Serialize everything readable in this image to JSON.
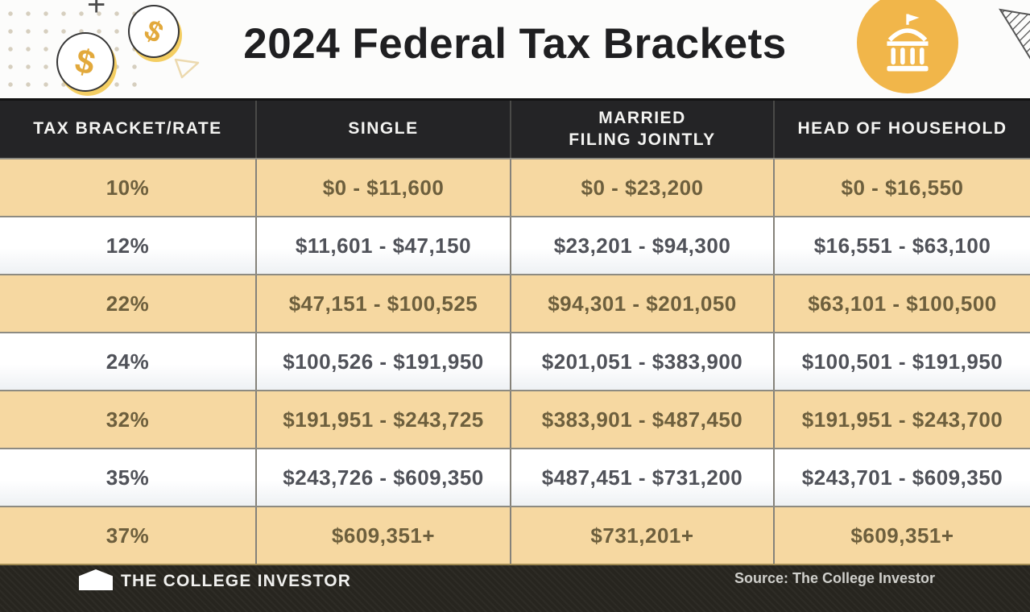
{
  "title": "2024 Federal Tax Brackets",
  "icons": {
    "dollar_glyph": "$",
    "plus_glyph": "+",
    "bank_icon": "capitol-building",
    "coin_icon": "dollar-coin",
    "triangle_outline_icon": "triangle-outline",
    "hatched_triangle_icon": "hatched-triangle",
    "pennant_icon": "pennant-flag"
  },
  "colors": {
    "accent_yellow": "#f1b64a",
    "row_tan": "#f6d8a1",
    "header_dark": "#242426",
    "tan_row_text": "#6d5f3d",
    "white_row_text": "#505259",
    "coin_gold": "#e2a93c",
    "coin_shadow_yellow": "#f4ce62",
    "footer_dark": "#27251f"
  },
  "chart_data": {
    "type": "table",
    "title": "2024 Federal Tax Brackets",
    "columns": [
      "TAX BRACKET/RATE",
      "SINGLE",
      "MARRIED\nFILING JOINTLY",
      "HEAD OF HOUSEHOLD"
    ],
    "rows": [
      [
        "10%",
        "$0 - $11,600",
        "$0 - $23,200",
        "$0 - $16,550"
      ],
      [
        "12%",
        "$11,601 - $47,150",
        "$23,201 - $94,300",
        "$16,551 - $63,100"
      ],
      [
        "22%",
        "$47,151 - $100,525",
        "$94,301 - $201,050",
        "$63,101 - $100,500"
      ],
      [
        "24%",
        "$100,526 - $191,950",
        "$201,051 - $383,900",
        "$100,501 - $191,950"
      ],
      [
        "32%",
        "$191,951 - $243,725",
        "$383,901 - $487,450",
        "$191,951 - $243,700"
      ],
      [
        "35%",
        "$243,726 - $609,350",
        "$487,451 - $731,200",
        "$243,701 - $609,350"
      ],
      [
        "37%",
        "$609,351+",
        "$731,201+",
        "$609,351+"
      ]
    ],
    "layout": {
      "row_striping": [
        "tan",
        "white"
      ],
      "header_background": "dark",
      "grid": "on"
    }
  },
  "footer": {
    "logo_text": "THE COLLEGE INVESTOR",
    "source": "Source: The College Investor"
  }
}
